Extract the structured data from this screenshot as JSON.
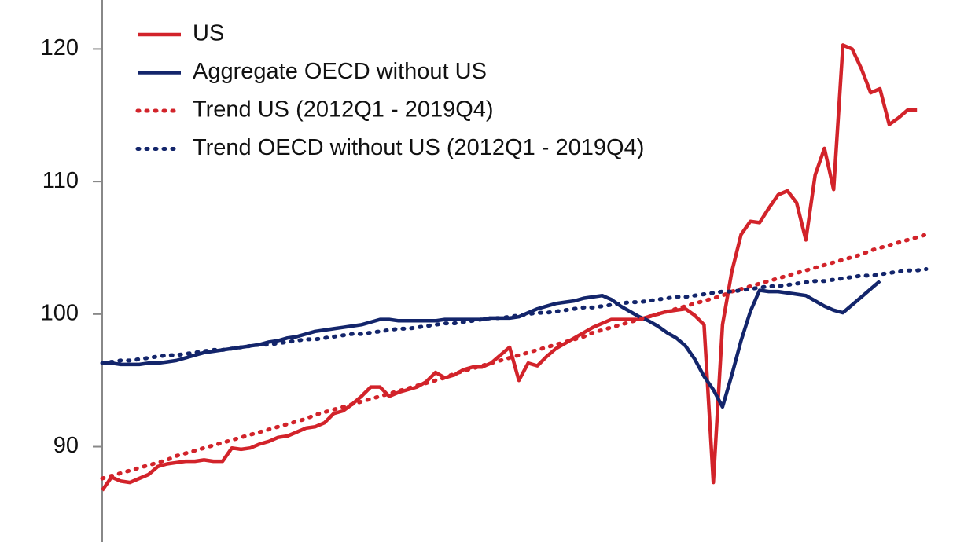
{
  "chart_data": {
    "type": "line",
    "ylim": [
      82.8,
      123.7
    ],
    "yticks": [
      90,
      100,
      110,
      120
    ],
    "legend": "top-left",
    "series": [
      {
        "name": "US",
        "color": "#d2232a",
        "style": "solid",
        "values": [
          86.7,
          87.7,
          87.4,
          87.3,
          87.6,
          87.9,
          88.5,
          88.7,
          88.8,
          88.9,
          88.9,
          89.0,
          88.9,
          88.9,
          89.9,
          89.8,
          89.9,
          90.2,
          90.4,
          90.7,
          90.8,
          91.1,
          91.4,
          91.5,
          91.8,
          92.5,
          92.7,
          93.2,
          93.8,
          94.5,
          94.5,
          93.8,
          94.1,
          94.3,
          94.5,
          94.9,
          95.6,
          95.2,
          95.4,
          95.8,
          96.0,
          96.0,
          96.3,
          96.9,
          97.5,
          95.0,
          96.3,
          96.1,
          96.8,
          97.4,
          97.8,
          98.2,
          98.6,
          99.0,
          99.3,
          99.6,
          99.6,
          99.6,
          99.6,
          99.8,
          100.0,
          100.2,
          100.3,
          100.4,
          99.9,
          99.2,
          87.3,
          99.2,
          103.2,
          106.0,
          107.0,
          106.9,
          108.0,
          109.0,
          109.3,
          108.4,
          105.6,
          110.5,
          112.5,
          109.4,
          120.3,
          120.0,
          118.5,
          116.7,
          117.0,
          114.3,
          114.8,
          115.4,
          115.4,
          null
        ]
      },
      {
        "name": "Aggregate OECD without US",
        "color": "#13256b",
        "style": "solid",
        "values": [
          96.3,
          96.3,
          96.2,
          96.2,
          96.2,
          96.3,
          96.3,
          96.4,
          96.5,
          96.7,
          96.9,
          97.1,
          97.2,
          97.3,
          97.4,
          97.5,
          97.6,
          97.7,
          97.9,
          98.0,
          98.2,
          98.3,
          98.5,
          98.7,
          98.8,
          98.9,
          99.0,
          99.1,
          99.2,
          99.4,
          99.6,
          99.6,
          99.5,
          99.5,
          99.5,
          99.5,
          99.5,
          99.6,
          99.6,
          99.6,
          99.6,
          99.6,
          99.7,
          99.7,
          99.7,
          99.8,
          100.1,
          100.4,
          100.6,
          100.8,
          100.9,
          101.0,
          101.2,
          101.3,
          101.4,
          101.1,
          100.6,
          100.2,
          99.8,
          99.5,
          99.1,
          98.6,
          98.2,
          97.6,
          96.6,
          95.3,
          94.3,
          93.0,
          95.4,
          98.0,
          100.2,
          101.8,
          101.7,
          101.7,
          101.6,
          101.5,
          101.4,
          101.0,
          100.6,
          100.3,
          100.1,
          100.7,
          101.3,
          101.9,
          102.5,
          null,
          null,
          null,
          null,
          null
        ]
      },
      {
        "name": "Trend US (2012Q1 - 2019Q4)",
        "color": "#d2232a",
        "style": "dotted",
        "values": [
          87.6,
          87.8,
          88.0,
          88.2,
          88.4,
          88.6,
          88.8,
          89.0,
          89.3,
          89.5,
          89.7,
          89.9,
          90.1,
          90.3,
          90.5,
          90.7,
          90.9,
          91.1,
          91.3,
          91.5,
          91.7,
          91.9,
          92.1,
          92.4,
          92.6,
          92.8,
          93.0,
          93.2,
          93.4,
          93.6,
          93.8,
          94.0,
          94.2,
          94.4,
          94.6,
          94.8,
          95.0,
          95.2,
          95.5,
          95.7,
          95.9,
          96.1,
          96.3,
          96.5,
          96.7,
          96.9,
          97.1,
          97.3,
          97.5,
          97.7,
          97.9,
          98.1,
          98.3,
          98.6,
          98.8,
          99.0,
          99.2,
          99.4,
          99.6,
          99.8,
          100.0,
          100.2,
          100.4,
          100.6,
          100.8,
          101.0,
          101.2,
          101.4,
          101.7,
          101.9,
          102.1,
          102.3,
          102.5,
          102.7,
          102.9,
          103.1,
          103.3,
          103.5,
          103.7,
          103.9,
          104.1,
          104.3,
          104.5,
          104.8,
          105.0,
          105.2,
          105.4,
          105.6,
          105.8,
          106.0
        ]
      },
      {
        "name": "Trend OECD without US (2012Q1 - 2019Q4)",
        "color": "#13256b",
        "style": "dotted",
        "values": [
          96.3,
          96.4,
          96.5,
          96.5,
          96.6,
          96.7,
          96.8,
          96.9,
          96.9,
          97.0,
          97.1,
          97.2,
          97.3,
          97.3,
          97.4,
          97.5,
          97.6,
          97.7,
          97.7,
          97.8,
          97.9,
          98.0,
          98.1,
          98.1,
          98.2,
          98.3,
          98.4,
          98.5,
          98.5,
          98.6,
          98.7,
          98.8,
          98.9,
          98.9,
          99.0,
          99.1,
          99.2,
          99.3,
          99.3,
          99.4,
          99.5,
          99.6,
          99.7,
          99.7,
          99.8,
          99.9,
          100.0,
          100.1,
          100.1,
          100.2,
          100.3,
          100.4,
          100.5,
          100.5,
          100.6,
          100.7,
          100.8,
          100.9,
          100.9,
          101.0,
          101.1,
          101.2,
          101.3,
          101.3,
          101.4,
          101.5,
          101.6,
          101.7,
          101.7,
          101.8,
          101.9,
          102.0,
          102.1,
          102.1,
          102.2,
          102.3,
          102.4,
          102.5,
          102.5,
          102.6,
          102.7,
          102.8,
          102.9,
          102.9,
          103.0,
          103.1,
          103.2,
          103.3,
          103.3,
          103.4
        ]
      }
    ]
  }
}
